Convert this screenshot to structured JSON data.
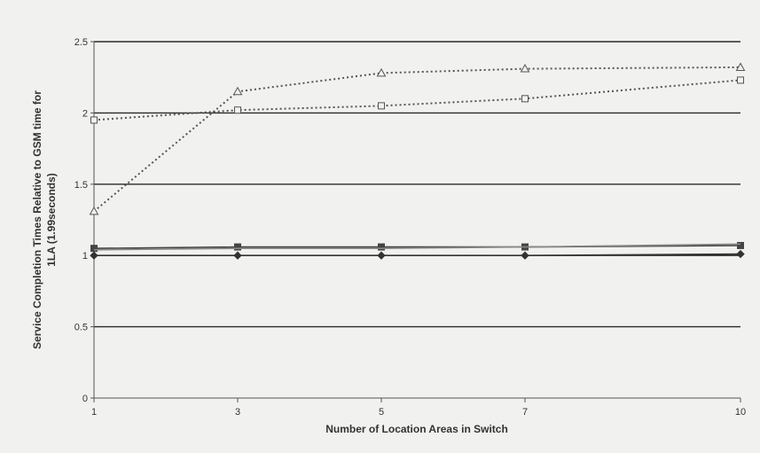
{
  "chart_data": {
    "type": "line",
    "xlabel": "Number of Location Areas in Switch",
    "ylabel_line1": "Service Completion Times Relative to GSM time for",
    "ylabel_line2": "1LA (1.99seconds)",
    "x": [
      1,
      3,
      5,
      7,
      10
    ],
    "x_tick_labels": [
      "1",
      "3",
      "5",
      "7",
      "10"
    ],
    "ylim": [
      0,
      2.5
    ],
    "y_ticks": [
      0,
      0.5,
      1,
      1.5,
      2,
      2.5
    ],
    "y_tick_labels": [
      "0",
      "0.5",
      "1",
      "1.5",
      "2",
      "2.5"
    ],
    "grid": "horizontal",
    "series": [
      {
        "marker": "triangle",
        "style": "dotted",
        "color": "#555555",
        "values": [
          1.31,
          2.15,
          2.28,
          2.31,
          2.32
        ]
      },
      {
        "marker": "square-open",
        "style": "dotted",
        "color": "#555555",
        "values": [
          1.95,
          2.02,
          2.05,
          2.1,
          2.23
        ]
      },
      {
        "marker": "square",
        "style": "solid",
        "color": "#444444",
        "values": [
          1.05,
          1.06,
          1.06,
          1.06,
          1.07
        ]
      },
      {
        "marker": "none",
        "style": "solid",
        "color": "#888888",
        "values": [
          1.04,
          1.05,
          1.05,
          1.06,
          1.08
        ]
      },
      {
        "marker": "diamond",
        "style": "solid",
        "color": "#333333",
        "values": [
          1.0,
          1.0,
          1.0,
          1.0,
          1.01
        ]
      }
    ]
  }
}
